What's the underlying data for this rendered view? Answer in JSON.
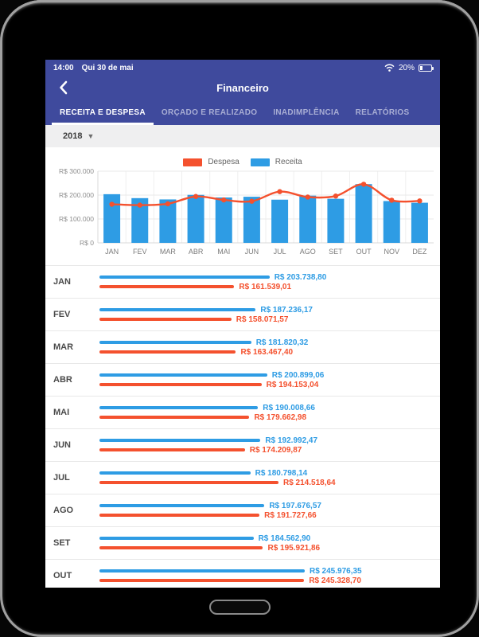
{
  "colors": {
    "primary": "#3f4a9d",
    "receita": "#2e9ce4",
    "despesa": "#f4512e"
  },
  "status_bar": {
    "time": "14:00",
    "date": "Qui 30 de mai",
    "battery": "20%"
  },
  "nav": {
    "title": "Financeiro"
  },
  "tabs": [
    {
      "label": "RECEITA E DESPESA",
      "active": true
    },
    {
      "label": "ORÇADO E REALIZADO",
      "active": false
    },
    {
      "label": "INADIMPLÊNCIA",
      "active": false
    },
    {
      "label": "RELATÓRIOS",
      "active": false
    }
  ],
  "filter": {
    "year": "2018"
  },
  "legend": [
    {
      "label": "Despesa",
      "color": "#f4512e"
    },
    {
      "label": "Receita",
      "color": "#2e9ce4"
    }
  ],
  "chart_data": {
    "type": "bar",
    "title": "",
    "categories": [
      "JAN",
      "FEV",
      "MAR",
      "ABR",
      "MAI",
      "JUN",
      "JUL",
      "AGO",
      "SET",
      "OUT",
      "NOV",
      "DEZ"
    ],
    "series": [
      {
        "name": "Receita",
        "type": "bar",
        "color": "#2e9ce4",
        "values": [
          203738.8,
          187236.17,
          181820.32,
          200899.06,
          190008.66,
          192992.47,
          180798.14,
          197676.57,
          184562.9,
          245976.35,
          175000,
          168000
        ]
      },
      {
        "name": "Despesa",
        "type": "line",
        "color": "#f4512e",
        "values": [
          161539.01,
          158071.57,
          163467.4,
          194153.04,
          179662.98,
          174209.87,
          214518.64,
          191727.66,
          195921.86,
          245328.7,
          178500,
          175500
        ]
      }
    ],
    "ylim": [
      0,
      300000
    ],
    "ytick_labels": [
      "R$ 300.000",
      "R$ 200.000",
      "R$ 100.000",
      "R$ 0"
    ],
    "grid": true,
    "legend_position": "top"
  },
  "rows": [
    {
      "month": "JAN",
      "receita": 203738.8,
      "despesa": 161539.01,
      "receita_label": "R$ 203.738,80",
      "despesa_label": "R$ 161.539,01"
    },
    {
      "month": "FEV",
      "receita": 187236.17,
      "despesa": 158071.57,
      "receita_label": "R$ 187.236,17",
      "despesa_label": "R$ 158.071,57"
    },
    {
      "month": "MAR",
      "receita": 181820.32,
      "despesa": 163467.4,
      "receita_label": "R$ 181.820,32",
      "despesa_label": "R$ 163.467,40"
    },
    {
      "month": "ABR",
      "receita": 200899.06,
      "despesa": 194153.04,
      "receita_label": "R$ 200.899,06",
      "despesa_label": "R$ 194.153,04"
    },
    {
      "month": "MAI",
      "receita": 190008.66,
      "despesa": 179662.98,
      "receita_label": "R$ 190.008,66",
      "despesa_label": "R$ 179.662,98"
    },
    {
      "month": "JUN",
      "receita": 192992.47,
      "despesa": 174209.87,
      "receita_label": "R$ 192.992,47",
      "despesa_label": "R$ 174.209,87"
    },
    {
      "month": "JUL",
      "receita": 180798.14,
      "despesa": 214518.64,
      "receita_label": "R$ 180.798,14",
      "despesa_label": "R$ 214.518,64"
    },
    {
      "month": "AGO",
      "receita": 197676.57,
      "despesa": 191727.66,
      "receita_label": "R$ 197.676,57",
      "despesa_label": "R$ 191.727,66"
    },
    {
      "month": "SET",
      "receita": 184562.9,
      "despesa": 195921.86,
      "receita_label": "R$ 184.562,90",
      "despesa_label": "R$ 195.921,86"
    },
    {
      "month": "OUT",
      "receita": 245976.35,
      "despesa": 245328.7,
      "receita_label": "R$ 245.976,35",
      "despesa_label": "R$ 245.328,70"
    }
  ]
}
